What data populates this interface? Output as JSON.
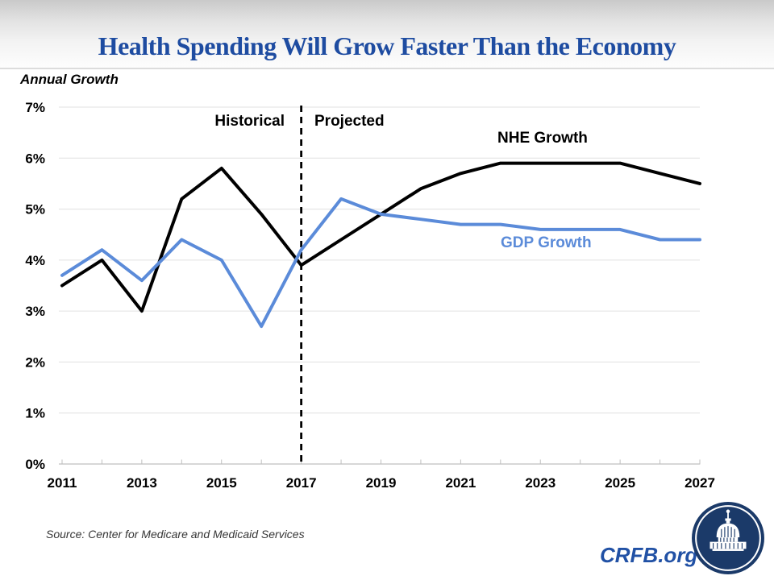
{
  "chart_data": {
    "type": "line",
    "title": "Health Spending Will Grow Faster Than the Economy",
    "ylabel": "Annual Growth",
    "xlabel": "",
    "x": [
      2011,
      2012,
      2013,
      2014,
      2015,
      2016,
      2017,
      2018,
      2019,
      2020,
      2021,
      2022,
      2023,
      2024,
      2025,
      2026,
      2027
    ],
    "series": [
      {
        "name": "NHE Growth",
        "color": "#000000",
        "values": [
          3.5,
          4.0,
          3.0,
          5.2,
          5.8,
          4.9,
          3.9,
          4.4,
          4.9,
          5.4,
          5.7,
          5.9,
          5.9,
          5.9,
          5.9,
          5.7,
          5.5
        ]
      },
      {
        "name": "GDP Growth",
        "color": "#5B8BD9",
        "values": [
          3.7,
          4.2,
          3.6,
          4.4,
          4.0,
          2.7,
          4.2,
          5.2,
          4.9,
          4.8,
          4.7,
          4.7,
          4.6,
          4.6,
          4.6,
          4.4,
          4.4
        ]
      }
    ],
    "ylim": [
      0,
      7
    ],
    "ytick_labels": [
      "0%",
      "1%",
      "2%",
      "3%",
      "4%",
      "5%",
      "6%",
      "7%"
    ],
    "xtick_labels": [
      "2011",
      "2013",
      "2015",
      "2017",
      "2019",
      "2021",
      "2023",
      "2025",
      "2027"
    ],
    "grid": true,
    "legend_position": "inline-labels",
    "annotations": {
      "historical": "Historical",
      "projected": "Projected",
      "divider_year": 2017
    }
  },
  "footer": {
    "source": "Source: Center for Medicare and Medicaid Services",
    "brand": "CRFB.org"
  },
  "colors": {
    "title_blue": "#1E4CA1",
    "brand_blue": "#2151A5",
    "logo_navy": "#1B3A69",
    "gridline": "#E0E0E0",
    "axis": "#BFBFBF",
    "divider": "#000000"
  }
}
